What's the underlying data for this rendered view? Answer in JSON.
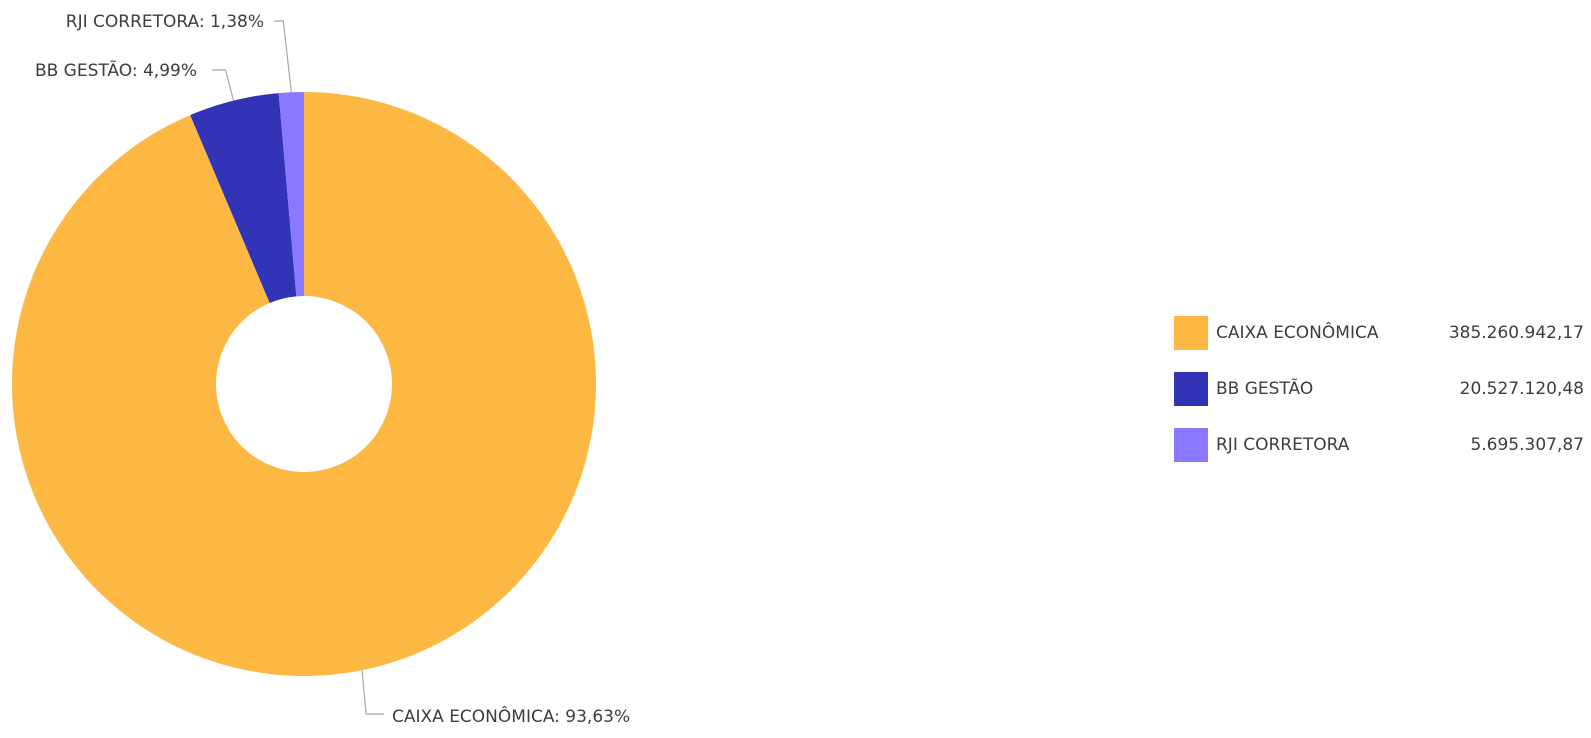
{
  "chart_data": {
    "type": "pie",
    "style": "donut",
    "slices": [
      {
        "name": "CAIXA ECONÔMICA",
        "value": 385260942.17,
        "value_label": "385.260.942,17",
        "percent": 93.63,
        "percent_label": "CAIXA ECONÔMICA: 93,63%",
        "color": "#FDB844"
      },
      {
        "name": "BB GESTÃO",
        "value": 20527120.48,
        "value_label": "20.527.120,48",
        "percent": 4.99,
        "percent_label": "BB GESTÃO: 4,99%",
        "color": "#3333B8"
      },
      {
        "name": "RJI CORRETORA",
        "value": 5695307.87,
        "value_label": "5.695.307,87",
        "percent": 1.38,
        "percent_label": "RJI CORRETORA: 1,38%",
        "color": "#8A78FF"
      }
    ],
    "legend_position": "right"
  }
}
